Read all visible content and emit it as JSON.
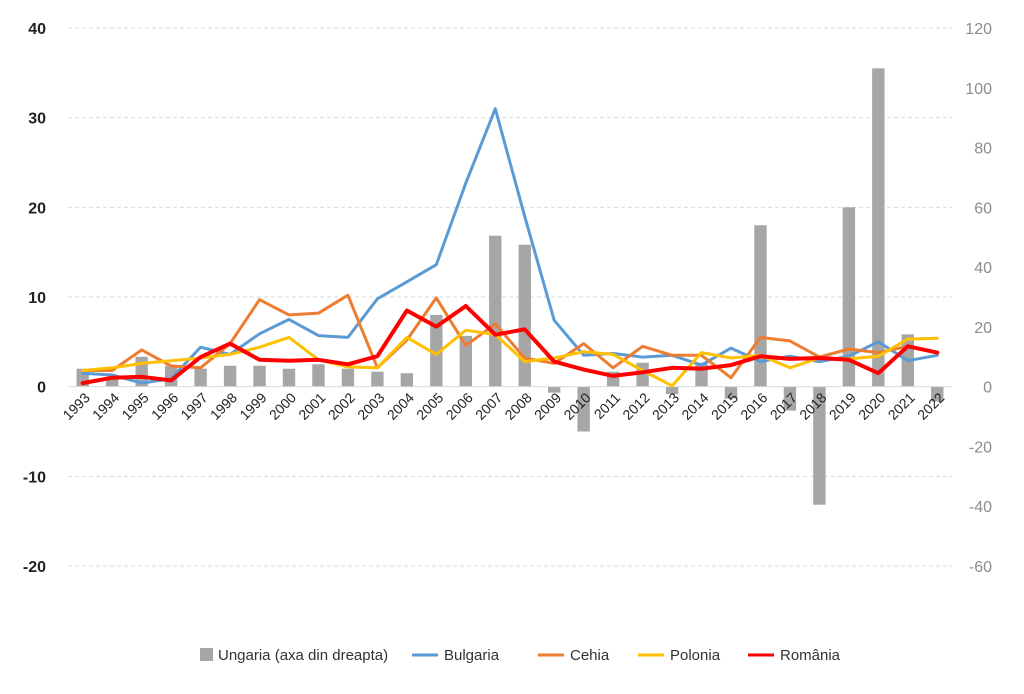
{
  "chart_data": {
    "type": "bar+line",
    "title": "",
    "categories": [
      "1993",
      "1994",
      "1995",
      "1996",
      "1997",
      "1998",
      "1999",
      "2000",
      "2001",
      "2002",
      "2003",
      "2004",
      "2005",
      "2006",
      "2007",
      "2008",
      "2009",
      "2010",
      "2011",
      "2012",
      "2013",
      "2014",
      "2015",
      "2016",
      "2017",
      "2018",
      "2019",
      "2020",
      "2021",
      "2022"
    ],
    "y_left": {
      "range": [
        -20,
        40
      ],
      "ticks": [
        40,
        30,
        20,
        10,
        0,
        -10,
        -20
      ]
    },
    "y_right": {
      "range": [
        -60,
        120
      ],
      "ticks": [
        120,
        100,
        80,
        60,
        40,
        20,
        0,
        -20,
        -40,
        -60
      ]
    },
    "grid": true,
    "legend_position": "bottom",
    "bar_series": {
      "name": "Ungaria (axa din dreapta)",
      "axis": "right",
      "color": "#a6a6a6",
      "values": [
        6,
        3,
        10,
        7,
        6,
        7,
        7,
        6,
        7.5,
        6,
        5,
        4.5,
        24,
        17,
        50.5,
        47.5,
        -2,
        -15,
        5,
        8,
        -2.5,
        8,
        -4,
        54,
        -8,
        -39.5,
        60,
        106.5,
        17.5,
        -5
      ]
    },
    "series": [
      {
        "name": "Bulgaria",
        "axis": "left",
        "color": "#5b9bd5",
        "values": [
          1.5,
          1.3,
          0.4,
          0.9,
          4.4,
          3.6,
          5.9,
          7.5,
          5.7,
          5.5,
          9.8,
          11.7,
          13.6,
          22.7,
          31.0,
          19.0,
          7.4,
          3.5,
          3.7,
          3.3,
          3.5,
          2.4,
          4.3,
          2.8,
          3.4,
          2.8,
          3.4,
          5.0,
          2.9,
          3.5
        ]
      },
      {
        "name": "Cehia",
        "axis": "left",
        "color": "#ed7d31",
        "values": [
          1.8,
          1.8,
          4.1,
          2.3,
          2.1,
          4.8,
          9.7,
          8.0,
          8.2,
          10.2,
          2.1,
          5.2,
          9.9,
          4.6,
          7.0,
          3.2,
          2.6,
          4.8,
          2.1,
          4.5,
          3.5,
          3.5,
          1.0,
          5.5,
          5.1,
          3.3,
          4.2,
          3.8,
          4.5,
          3.8
        ]
      },
      {
        "name": "Polonia",
        "axis": "left",
        "color": "#ffc000",
        "values": [
          1.8,
          2.1,
          2.6,
          2.9,
          3.2,
          3.6,
          4.4,
          5.5,
          3.0,
          2.2,
          2.1,
          5.5,
          3.6,
          6.3,
          5.8,
          2.8,
          3.2,
          3.9,
          3.6,
          1.8,
          0.1,
          3.8,
          3.2,
          3.5,
          2.1,
          3.2,
          3.1,
          3.4,
          5.3,
          5.4
        ]
      },
      {
        "name": "România",
        "axis": "left",
        "color": "#ff0000",
        "values": [
          0.4,
          1.0,
          1.1,
          0.7,
          3.3,
          4.8,
          3.0,
          2.9,
          3.0,
          2.5,
          3.4,
          8.5,
          6.7,
          9.0,
          5.8,
          6.4,
          2.8,
          1.9,
          1.2,
          1.6,
          2.1,
          2.0,
          2.4,
          3.4,
          3.1,
          3.2,
          3.0,
          1.5,
          4.5,
          3.8
        ]
      }
    ]
  }
}
